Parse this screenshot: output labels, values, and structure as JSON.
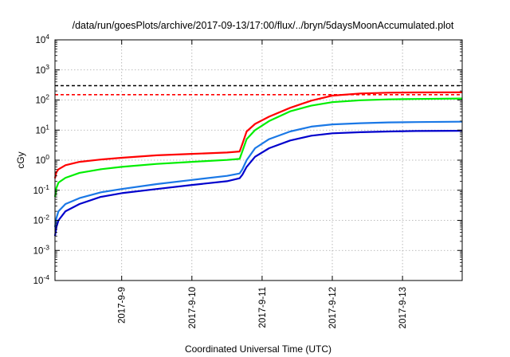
{
  "chart_data": {
    "type": "line",
    "title": "/data/run/goesPlots/archive/2017-09-13/17:00/flux/../bryn/5daysMoonAccumulated.plot",
    "xlabel": "Coordinated Universal Time (UTC)",
    "ylabel": "cGy",
    "y_scale": "log",
    "ylim_exponents": [
      -4,
      4
    ],
    "y_ticks": [
      {
        "base": "10",
        "exp": "4",
        "e": 4
      },
      {
        "base": "10",
        "exp": "3",
        "e": 3
      },
      {
        "base": "10",
        "exp": "2",
        "e": 2
      },
      {
        "base": "10",
        "exp": "1",
        "e": 1
      },
      {
        "base": "10",
        "exp": "0",
        "e": 0
      },
      {
        "base": "10",
        "exp": "-1",
        "e": -1
      },
      {
        "base": "10",
        "exp": "-2",
        "e": -2
      },
      {
        "base": "10",
        "exp": "-3",
        "e": -3
      },
      {
        "base": "10",
        "exp": "-4",
        "e": -4
      }
    ],
    "xlim_days": [
      8.05,
      13.85
    ],
    "x_ticks": [
      {
        "label": "2017-9-9",
        "day": 9
      },
      {
        "label": "2017-9-10",
        "day": 10
      },
      {
        "label": "2017-9-11",
        "day": 11
      },
      {
        "label": "2017-9-12",
        "day": 12
      },
      {
        "label": "2017-9-13",
        "day": 13
      }
    ],
    "grid": true,
    "thresholds": [
      {
        "value": 300,
        "color": "#000000",
        "style": "dashed"
      },
      {
        "value": 150,
        "color": "#ff0000",
        "style": "dashed"
      }
    ],
    "series": [
      {
        "color": "#ff0000",
        "points": [
          [
            8.05,
            0.25
          ],
          [
            8.07,
            0.4
          ],
          [
            8.1,
            0.5
          ],
          [
            8.2,
            0.68
          ],
          [
            8.4,
            0.88
          ],
          [
            8.7,
            1.05
          ],
          [
            9.0,
            1.2
          ],
          [
            9.5,
            1.45
          ],
          [
            10.0,
            1.62
          ],
          [
            10.5,
            1.8
          ],
          [
            10.68,
            1.95
          ],
          [
            10.72,
            3.5
          ],
          [
            10.78,
            9
          ],
          [
            10.9,
            16
          ],
          [
            11.1,
            28
          ],
          [
            11.4,
            55
          ],
          [
            11.7,
            95
          ],
          [
            12.0,
            140
          ],
          [
            12.4,
            165
          ],
          [
            12.8,
            175
          ],
          [
            13.2,
            178
          ],
          [
            13.85,
            180
          ]
        ]
      },
      {
        "color": "#00ee00",
        "points": [
          [
            8.05,
            0.06
          ],
          [
            8.07,
            0.12
          ],
          [
            8.1,
            0.18
          ],
          [
            8.2,
            0.26
          ],
          [
            8.4,
            0.38
          ],
          [
            8.7,
            0.5
          ],
          [
            9.0,
            0.6
          ],
          [
            9.5,
            0.75
          ],
          [
            10.0,
            0.88
          ],
          [
            10.5,
            1.02
          ],
          [
            10.68,
            1.1
          ],
          [
            10.72,
            2.0
          ],
          [
            10.78,
            5.0
          ],
          [
            10.9,
            10
          ],
          [
            11.1,
            20
          ],
          [
            11.4,
            42
          ],
          [
            11.7,
            65
          ],
          [
            12.0,
            85
          ],
          [
            12.4,
            98
          ],
          [
            12.8,
            105
          ],
          [
            13.2,
            108
          ],
          [
            13.85,
            112
          ]
        ]
      },
      {
        "color": "#1a78e6",
        "points": [
          [
            8.05,
            0.006
          ],
          [
            8.07,
            0.012
          ],
          [
            8.1,
            0.02
          ],
          [
            8.2,
            0.035
          ],
          [
            8.4,
            0.055
          ],
          [
            8.7,
            0.085
          ],
          [
            9.0,
            0.11
          ],
          [
            9.5,
            0.16
          ],
          [
            10.0,
            0.22
          ],
          [
            10.5,
            0.3
          ],
          [
            10.68,
            0.36
          ],
          [
            10.72,
            0.5
          ],
          [
            10.78,
            1.0
          ],
          [
            10.9,
            2.5
          ],
          [
            11.1,
            5
          ],
          [
            11.4,
            9
          ],
          [
            11.7,
            13
          ],
          [
            12.0,
            15.5
          ],
          [
            12.4,
            17
          ],
          [
            12.8,
            18
          ],
          [
            13.2,
            18.5
          ],
          [
            13.85,
            19
          ]
        ]
      },
      {
        "color": "#0000cc",
        "points": [
          [
            8.05,
            0.003
          ],
          [
            8.07,
            0.006
          ],
          [
            8.1,
            0.01
          ],
          [
            8.2,
            0.02
          ],
          [
            8.4,
            0.035
          ],
          [
            8.7,
            0.06
          ],
          [
            9.0,
            0.08
          ],
          [
            9.5,
            0.11
          ],
          [
            10.0,
            0.15
          ],
          [
            10.5,
            0.2
          ],
          [
            10.68,
            0.25
          ],
          [
            10.72,
            0.33
          ],
          [
            10.78,
            0.6
          ],
          [
            10.9,
            1.3
          ],
          [
            11.1,
            2.5
          ],
          [
            11.4,
            4.5
          ],
          [
            11.7,
            6.5
          ],
          [
            12.0,
            7.8
          ],
          [
            12.4,
            8.5
          ],
          [
            12.8,
            9.0
          ],
          [
            13.2,
            9.3
          ],
          [
            13.85,
            9.5
          ]
        ]
      }
    ]
  }
}
